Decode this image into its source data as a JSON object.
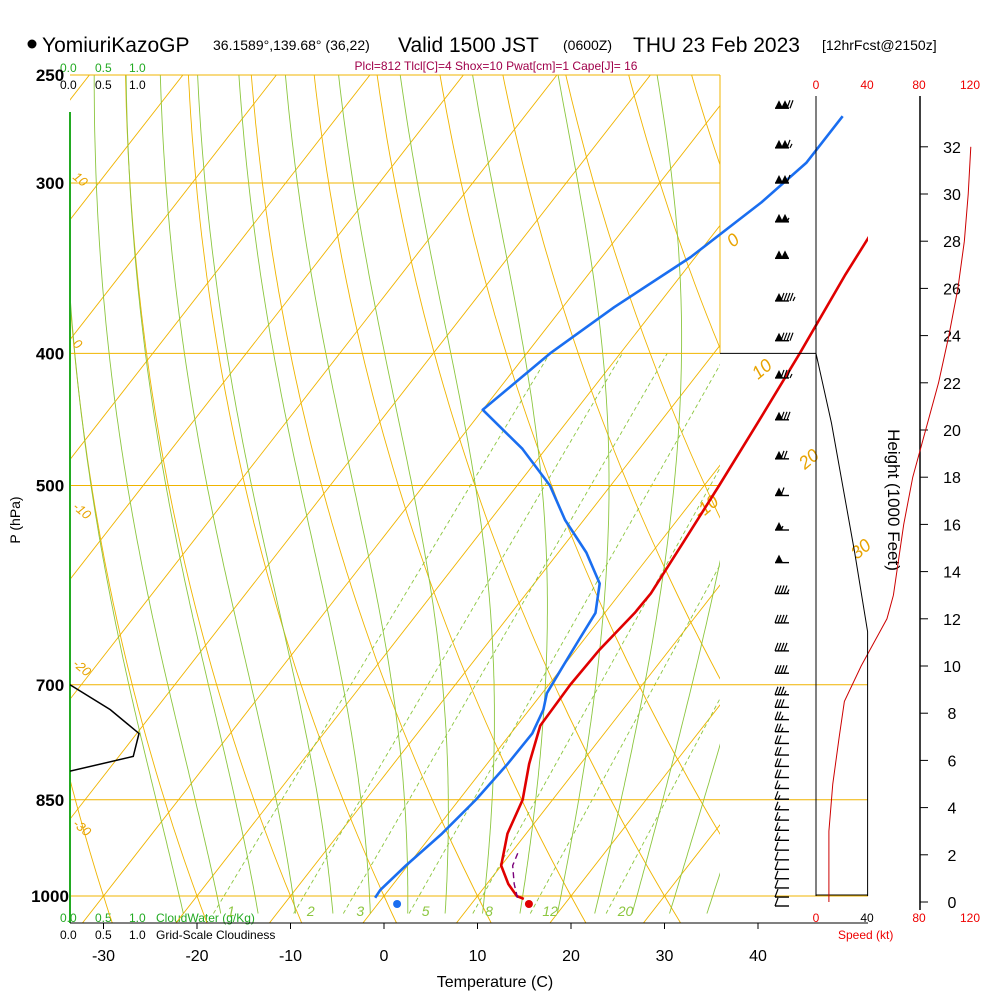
{
  "header": {
    "station": "YomiuriKazoGP",
    "coords": "36.1589°,139.68° (36,22)",
    "valid_prefix": "Valid 1500 JST",
    "valid_z": "(0600Z)",
    "valid_date": "THU 23 Feb 2023",
    "forecast": "[12hrFcst@2150z]",
    "indices": "Plcl=812 Tlcl[C]=4 Shox=10 Pwat[cm]=1 Cape[J]= 16"
  },
  "axes": {
    "ylabel": "P (hPa)",
    "xlabel": "Temperature (C)",
    "height_label": "Height (1000 Feet)",
    "speed_label": "Speed (kt)",
    "cloudwater_label": "CloudWater (g/Kg)",
    "cloudiness_label": "Grid-Scale Cloudiness"
  },
  "scales": {
    "top_green": [
      "0.0",
      "0.5",
      "1.0"
    ],
    "top_black": [
      "0.0",
      "0.5",
      "1.0"
    ],
    "bottom_green": [
      "0.0",
      "0.5",
      "1.0"
    ],
    "bottom_black": [
      "0.0",
      "0.5",
      "1.0"
    ],
    "speed_ticks": [
      "0",
      "40",
      "80",
      "120"
    ]
  },
  "chart_data": {
    "type": "line",
    "y_scale": "log-pressure",
    "pressure_levels": [
      250,
      300,
      400,
      500,
      700,
      850,
      1000
    ],
    "temperature_ticks": [
      -30,
      -20,
      -10,
      0,
      10,
      20,
      30,
      40
    ],
    "xlim": [
      -34,
      46
    ],
    "height_ticks_kft": [
      0,
      2,
      4,
      6,
      8,
      10,
      12,
      14,
      16,
      18,
      20,
      22,
      24,
      26,
      28,
      30,
      32
    ],
    "isotherm_labels": [
      "-10",
      "0",
      "10",
      "20",
      "30"
    ],
    "mixing_ratio_labels": [
      "1",
      "2",
      "3",
      "5",
      "8",
      "12",
      "20"
    ],
    "dry_adiabat_labels": [
      "10",
      "0",
      "-10",
      "-20",
      "-30"
    ],
    "temperature": [
      {
        "p": 1005,
        "t": 15.2
      },
      {
        "p": 1000,
        "t": 14.2
      },
      {
        "p": 980,
        "t": 12.3
      },
      {
        "p": 950,
        "t": 10.0
      },
      {
        "p": 900,
        "t": 8.0
      },
      {
        "p": 850,
        "t": 6.8
      },
      {
        "p": 800,
        "t": 4.5
      },
      {
        "p": 750,
        "t": 2.5
      },
      {
        "p": 700,
        "t": 2.3
      },
      {
        "p": 660,
        "t": 2.5
      },
      {
        "p": 620,
        "t": 3.2
      },
      {
        "p": 600,
        "t": 3.3
      },
      {
        "p": 550,
        "t": 2.5
      },
      {
        "p": 500,
        "t": 1.6
      },
      {
        "p": 450,
        "t": 0.5
      },
      {
        "p": 400,
        "t": -0.8
      },
      {
        "p": 350,
        "t": -2.5
      },
      {
        "p": 300,
        "t": -4.0
      },
      {
        "p": 268,
        "t": -5.8
      }
    ],
    "dewpoint": [
      {
        "p": 1003,
        "t": -0.8
      },
      {
        "p": 990,
        "t": -0.9
      },
      {
        "p": 950,
        "t": -0.2
      },
      {
        "p": 900,
        "t": 1.0
      },
      {
        "p": 850,
        "t": 1.8
      },
      {
        "p": 800,
        "t": 2.2
      },
      {
        "p": 760,
        "t": 2.3
      },
      {
        "p": 730,
        "t": 1.5
      },
      {
        "p": 710,
        "t": 0.5
      },
      {
        "p": 680,
        "t": 0.0
      },
      {
        "p": 650,
        "t": -0.5
      },
      {
        "p": 620,
        "t": -1.0
      },
      {
        "p": 590,
        "t": -3.0
      },
      {
        "p": 560,
        "t": -7.0
      },
      {
        "p": 530,
        "t": -12.0
      },
      {
        "p": 500,
        "t": -16.5
      },
      {
        "p": 470,
        "t": -22.5
      },
      {
        "p": 440,
        "t": -30.0
      },
      {
        "p": 400,
        "t": -27.5
      },
      {
        "p": 370,
        "t": -24.5
      },
      {
        "p": 340,
        "t": -20.5
      },
      {
        "p": 310,
        "t": -17.5
      },
      {
        "p": 290,
        "t": -16.0
      },
      {
        "p": 268,
        "t": -16.0
      }
    ],
    "parcel": [
      {
        "p": 1003,
        "t": 14.0
      },
      {
        "p": 980,
        "t": 12.5
      },
      {
        "p": 950,
        "t": 10.8
      },
      {
        "p": 930,
        "t": 10.3
      }
    ],
    "surface_markers": {
      "dewpoint_t": 1.4,
      "temperature_t": 15.5,
      "p": 1003
    },
    "cloudiness_profile": [
      {
        "p": 700,
        "v": 0.0
      },
      {
        "p": 730,
        "v": 0.35
      },
      {
        "p": 760,
        "v": 0.6
      },
      {
        "p": 790,
        "v": 0.55
      },
      {
        "p": 810,
        "v": 0.0
      }
    ],
    "wind_speed_profile": [
      {
        "h": 0,
        "s": 10
      },
      {
        "h": 3,
        "s": 10
      },
      {
        "h": 5,
        "s": 13
      },
      {
        "h": 7,
        "s": 18
      },
      {
        "h": 8.5,
        "s": 22
      },
      {
        "h": 10,
        "s": 35
      },
      {
        "h": 11,
        "s": 45
      },
      {
        "h": 12,
        "s": 55
      },
      {
        "h": 13,
        "s": 60
      },
      {
        "h": 16,
        "s": 68
      },
      {
        "h": 18,
        "s": 75
      },
      {
        "h": 20,
        "s": 85
      },
      {
        "h": 22,
        "s": 95
      },
      {
        "h": 24,
        "s": 103
      },
      {
        "h": 26,
        "s": 110
      },
      {
        "h": 28,
        "s": 115
      },
      {
        "h": 30,
        "s": 118
      },
      {
        "h": 32,
        "s": 120
      }
    ],
    "wind_barbs": [
      {
        "p": 1000,
        "speed": 10
      },
      {
        "p": 985,
        "speed": 10
      },
      {
        "p": 970,
        "speed": 10
      },
      {
        "p": 955,
        "speed": 10
      },
      {
        "p": 940,
        "speed": 10
      },
      {
        "p": 925,
        "speed": 10
      },
      {
        "p": 910,
        "speed": 10
      },
      {
        "p": 895,
        "speed": 15
      },
      {
        "p": 880,
        "speed": 15
      },
      {
        "p": 865,
        "speed": 15
      },
      {
        "p": 850,
        "speed": 15
      },
      {
        "p": 835,
        "speed": 15
      },
      {
        "p": 820,
        "speed": 15
      },
      {
        "p": 805,
        "speed": 20
      },
      {
        "p": 790,
        "speed": 20
      },
      {
        "p": 775,
        "speed": 20
      },
      {
        "p": 760,
        "speed": 20
      },
      {
        "p": 745,
        "speed": 25
      },
      {
        "p": 730,
        "speed": 25
      },
      {
        "p": 715,
        "speed": 30
      },
      {
        "p": 700,
        "speed": 35
      },
      {
        "p": 675,
        "speed": 40
      },
      {
        "p": 650,
        "speed": 40
      },
      {
        "p": 620,
        "speed": 40
      },
      {
        "p": 590,
        "speed": 45
      },
      {
        "p": 560,
        "speed": 50
      },
      {
        "p": 530,
        "speed": 55
      },
      {
        "p": 500,
        "speed": 60
      },
      {
        "p": 470,
        "speed": 70
      },
      {
        "p": 440,
        "speed": 80
      },
      {
        "p": 410,
        "speed": 85
      },
      {
        "p": 385,
        "speed": 90
      },
      {
        "p": 360,
        "speed": 95
      },
      {
        "p": 335,
        "speed": 100
      },
      {
        "p": 315,
        "speed": 105
      },
      {
        "p": 295,
        "speed": 110
      },
      {
        "p": 278,
        "speed": 115
      },
      {
        "p": 260,
        "speed": 120
      }
    ],
    "speed_envelope": [
      {
        "p": 1000,
        "v": 40
      },
      {
        "p": 700,
        "v": 40
      },
      {
        "p": 640,
        "v": 40
      },
      {
        "p": 560,
        "v": 30
      },
      {
        "p": 450,
        "v": 12
      },
      {
        "p": 400,
        "v": 0
      }
    ]
  }
}
